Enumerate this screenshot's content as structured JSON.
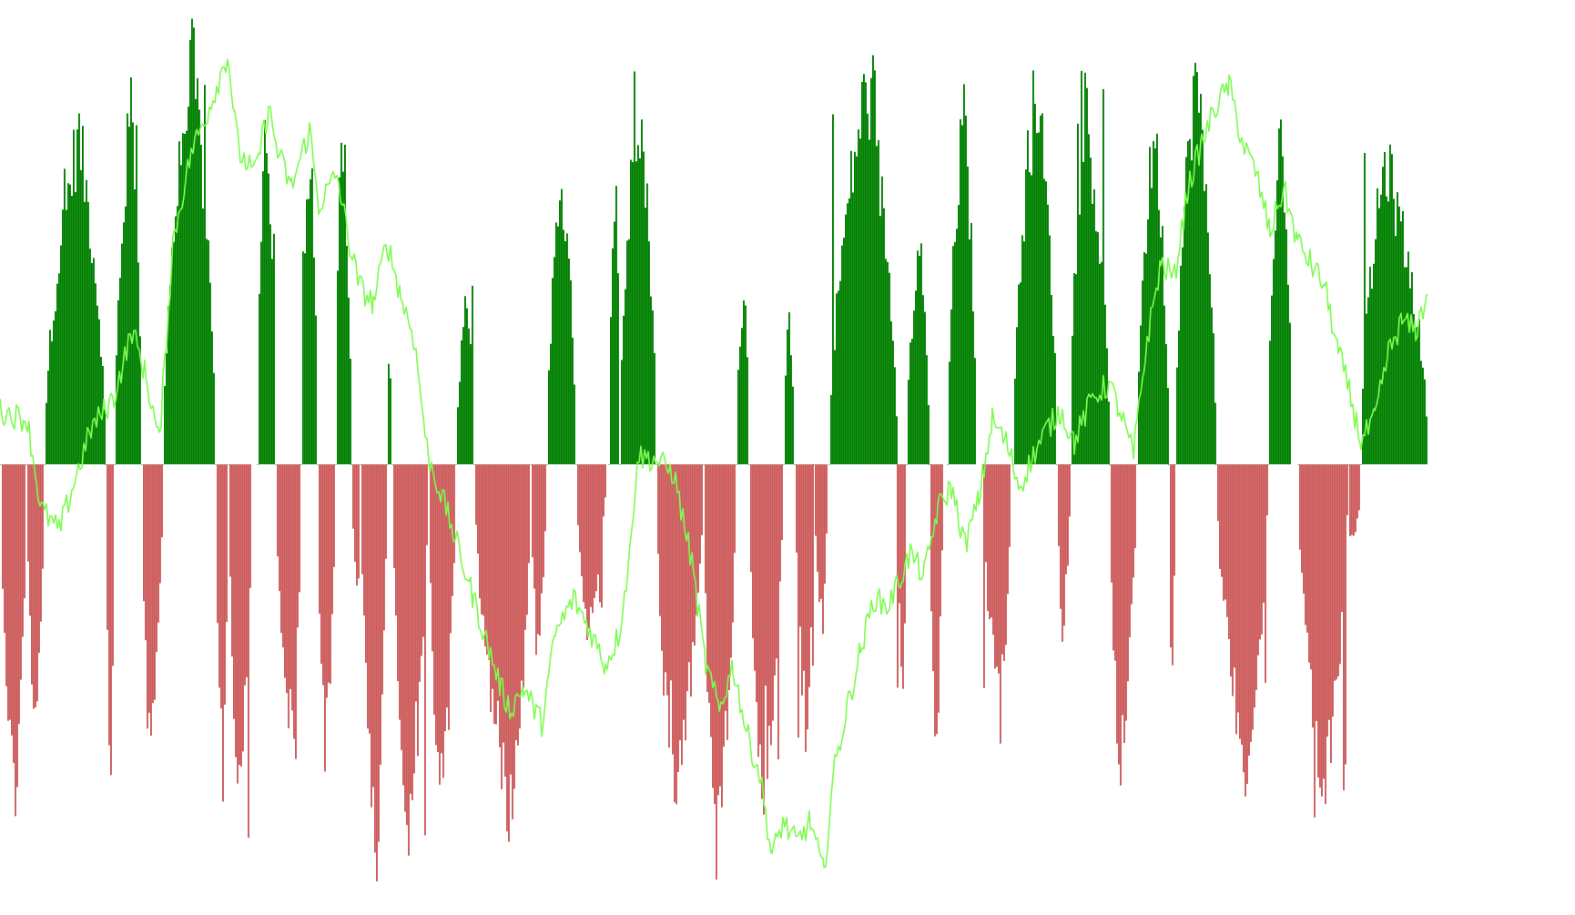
{
  "chart_data": {
    "type": "bar",
    "title": "",
    "xlabel": "",
    "ylabel": "",
    "ylim": [
      -1,
      1
    ],
    "grid": false,
    "legend": "none",
    "colors": {
      "positive": "#008000",
      "negative": "#cd5c5c",
      "line": "#7cfc4f",
      "background": "#ffffff"
    },
    "histogram_segments": [
      {
        "from": 0,
        "to": 28,
        "shape": "neg",
        "peak": -0.8
      },
      {
        "from": 28,
        "to": 48,
        "shape": "neg",
        "peak": -0.6
      },
      {
        "from": 48,
        "to": 115,
        "shape": "pos",
        "peak": 0.78
      },
      {
        "from": 115,
        "to": 125,
        "shape": "neg",
        "peak": -0.77
      },
      {
        "from": 125,
        "to": 155,
        "shape": "pos",
        "peak": 0.87
      },
      {
        "from": 155,
        "to": 178,
        "shape": "neg",
        "peak": -0.7
      },
      {
        "from": 178,
        "to": 236,
        "shape": "pos",
        "peak": 0.95
      },
      {
        "from": 236,
        "to": 250,
        "shape": "neg",
        "peak": -0.75
      },
      {
        "from": 250,
        "to": 276,
        "shape": "neg",
        "peak": -0.8
      },
      {
        "from": 282,
        "to": 302,
        "shape": "pos",
        "peak": 0.8
      },
      {
        "from": 302,
        "to": 330,
        "shape": "neg",
        "peak": -0.65
      },
      {
        "from": 330,
        "to": 348,
        "shape": "pos",
        "peak": 0.78
      },
      {
        "from": 348,
        "to": 368,
        "shape": "neg",
        "peak": -0.7
      },
      {
        "from": 368,
        "to": 385,
        "shape": "pos",
        "peak": 0.87
      },
      {
        "from": 385,
        "to": 395,
        "shape": "neg",
        "peak": -0.3
      },
      {
        "from": 395,
        "to": 424,
        "shape": "neg",
        "peak": -0.9
      },
      {
        "from": 424,
        "to": 430,
        "shape": "pos",
        "peak": 0.3
      },
      {
        "from": 430,
        "to": 470,
        "shape": "neg",
        "peak": -0.85
      },
      {
        "from": 470,
        "to": 500,
        "shape": "neg",
        "peak": -0.8
      },
      {
        "from": 500,
        "to": 520,
        "shape": "pos",
        "peak": 0.4
      },
      {
        "from": 520,
        "to": 582,
        "shape": "neg",
        "peak": -0.82
      },
      {
        "from": 582,
        "to": 600,
        "shape": "neg",
        "peak": -0.45
      },
      {
        "from": 600,
        "to": 632,
        "shape": "pos",
        "peak": 0.68
      },
      {
        "from": 632,
        "to": 665,
        "shape": "neg",
        "peak": -0.38
      },
      {
        "from": 668,
        "to": 680,
        "shape": "pos",
        "peak": 0.73
      },
      {
        "from": 680,
        "to": 720,
        "shape": "pos",
        "peak": 0.87
      },
      {
        "from": 720,
        "to": 772,
        "shape": "neg",
        "peak": -0.8
      },
      {
        "from": 772,
        "to": 808,
        "shape": "neg",
        "peak": -0.92
      },
      {
        "from": 808,
        "to": 822,
        "shape": "pos",
        "peak": 0.44
      },
      {
        "from": 822,
        "to": 860,
        "shape": "neg",
        "peak": -0.8
      },
      {
        "from": 860,
        "to": 872,
        "shape": "pos",
        "peak": 0.35
      },
      {
        "from": 872,
        "to": 893,
        "shape": "neg",
        "peak": -0.65
      },
      {
        "from": 893,
        "to": 908,
        "shape": "neg",
        "peak": -0.4
      },
      {
        "from": 910,
        "to": 985,
        "shape": "pos",
        "peak": 0.9
      },
      {
        "from": 985,
        "to": 995,
        "shape": "neg",
        "peak": -0.6
      },
      {
        "from": 995,
        "to": 1020,
        "shape": "pos",
        "peak": 0.53
      },
      {
        "from": 1020,
        "to": 1035,
        "shape": "neg",
        "peak": -0.7
      },
      {
        "from": 1040,
        "to": 1072,
        "shape": "pos",
        "peak": 0.83
      },
      {
        "from": 1078,
        "to": 1110,
        "shape": "neg",
        "peak": -0.6
      },
      {
        "from": 1112,
        "to": 1160,
        "shape": "pos",
        "peak": 0.9
      },
      {
        "from": 1160,
        "to": 1175,
        "shape": "neg",
        "peak": -0.4
      },
      {
        "from": 1175,
        "to": 1218,
        "shape": "pos",
        "peak": 0.86
      },
      {
        "from": 1218,
        "to": 1248,
        "shape": "neg",
        "peak": -0.7
      },
      {
        "from": 1248,
        "to": 1283,
        "shape": "pos",
        "peak": 0.8
      },
      {
        "from": 1283,
        "to": 1290,
        "shape": "neg",
        "peak": -0.5
      },
      {
        "from": 1290,
        "to": 1335,
        "shape": "pos",
        "peak": 0.93
      },
      {
        "from": 1335,
        "to": 1392,
        "shape": "neg",
        "peak": -0.72
      },
      {
        "from": 1392,
        "to": 1418,
        "shape": "pos",
        "peak": 0.82
      },
      {
        "from": 1425,
        "to": 1480,
        "shape": "neg",
        "peak": -0.78
      },
      {
        "from": 1480,
        "to": 1494,
        "shape": "neg",
        "peak": -0.2
      },
      {
        "from": 1494,
        "to": 1568,
        "shape": "pos",
        "peak": 0.72
      }
    ],
    "line_points": [
      [
        0,
        0.12
      ],
      [
        30,
        0.1
      ],
      [
        45,
        -0.1
      ],
      [
        65,
        -0.15
      ],
      [
        80,
        -0.05
      ],
      [
        100,
        0.08
      ],
      [
        125,
        0.15
      ],
      [
        145,
        0.3
      ],
      [
        160,
        0.2
      ],
      [
        175,
        0.05
      ],
      [
        190,
        0.5
      ],
      [
        210,
        0.7
      ],
      [
        230,
        0.8
      ],
      [
        250,
        0.92
      ],
      [
        262,
        0.7
      ],
      [
        280,
        0.65
      ],
      [
        295,
        0.8
      ],
      [
        305,
        0.7
      ],
      [
        320,
        0.62
      ],
      [
        340,
        0.75
      ],
      [
        350,
        0.58
      ],
      [
        370,
        0.65
      ],
      [
        385,
        0.48
      ],
      [
        395,
        0.4
      ],
      [
        410,
        0.36
      ],
      [
        425,
        0.5
      ],
      [
        440,
        0.38
      ],
      [
        455,
        0.28
      ],
      [
        470,
        0.02
      ],
      [
        490,
        -0.1
      ],
      [
        505,
        -0.2
      ],
      [
        520,
        -0.3
      ],
      [
        535,
        -0.4
      ],
      [
        550,
        -0.5
      ],
      [
        560,
        -0.55
      ],
      [
        575,
        -0.5
      ],
      [
        595,
        -0.58
      ],
      [
        610,
        -0.38
      ],
      [
        630,
        -0.3
      ],
      [
        650,
        -0.38
      ],
      [
        665,
        -0.45
      ],
      [
        680,
        -0.38
      ],
      [
        692,
        -0.2
      ],
      [
        700,
        0.02
      ],
      [
        720,
        0.01
      ],
      [
        740,
        -0.02
      ],
      [
        760,
        -0.22
      ],
      [
        775,
        -0.45
      ],
      [
        790,
        -0.55
      ],
      [
        805,
        -0.45
      ],
      [
        820,
        -0.6
      ],
      [
        835,
        -0.7
      ],
      [
        848,
        -0.88
      ],
      [
        860,
        -0.8
      ],
      [
        875,
        -0.85
      ],
      [
        890,
        -0.8
      ],
      [
        905,
        -0.92
      ],
      [
        915,
        -0.7
      ],
      [
        930,
        -0.55
      ],
      [
        945,
        -0.42
      ],
      [
        960,
        -0.3
      ],
      [
        975,
        -0.32
      ],
      [
        990,
        -0.25
      ],
      [
        1000,
        -0.2
      ],
      [
        1015,
        -0.25
      ],
      [
        1030,
        -0.1
      ],
      [
        1045,
        -0.05
      ],
      [
        1060,
        -0.18
      ],
      [
        1075,
        -0.08
      ],
      [
        1090,
        0.1
      ],
      [
        1105,
        0.05
      ],
      [
        1120,
        -0.05
      ],
      [
        1135,
        0.02
      ],
      [
        1150,
        0.08
      ],
      [
        1165,
        0.12
      ],
      [
        1180,
        0.05
      ],
      [
        1200,
        0.15
      ],
      [
        1218,
        0.18
      ],
      [
        1230,
        0.12
      ],
      [
        1245,
        0.02
      ],
      [
        1260,
        0.28
      ],
      [
        1275,
        0.45
      ],
      [
        1290,
        0.42
      ],
      [
        1305,
        0.62
      ],
      [
        1320,
        0.72
      ],
      [
        1335,
        0.8
      ],
      [
        1350,
        0.85
      ],
      [
        1365,
        0.72
      ],
      [
        1380,
        0.65
      ],
      [
        1395,
        0.52
      ],
      [
        1410,
        0.62
      ],
      [
        1425,
        0.5
      ],
      [
        1440,
        0.45
      ],
      [
        1455,
        0.4
      ],
      [
        1470,
        0.25
      ],
      [
        1480,
        0.18
      ],
      [
        1495,
        0.05
      ],
      [
        1510,
        0.1
      ],
      [
        1525,
        0.25
      ],
      [
        1540,
        0.32
      ],
      [
        1555,
        0.3
      ],
      [
        1568,
        0.38
      ]
    ]
  }
}
